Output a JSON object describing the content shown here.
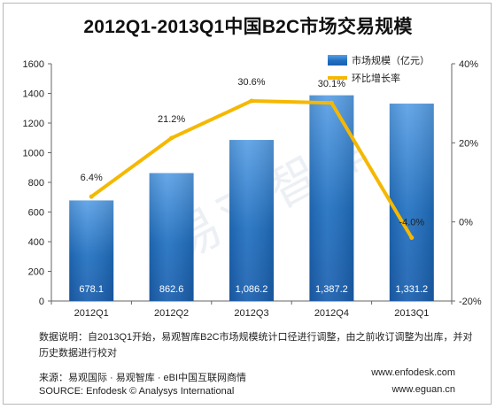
{
  "chart_data": {
    "type": "bar",
    "title": "2012Q1-2013Q1中国B2C市场交易规模",
    "categories": [
      "2012Q1",
      "2012Q2",
      "2012Q3",
      "2012Q4",
      "2013Q1"
    ],
    "series": [
      {
        "name": "市场规模（亿元）",
        "type": "bar",
        "axis": "left",
        "values": [
          678.1,
          862.6,
          1086.2,
          1387.2,
          1331.2
        ],
        "value_labels": [
          "678.1",
          "862.6",
          "1,086.2",
          "1,387.2",
          "1,331.2"
        ],
        "color": "#1f6fc0"
      },
      {
        "name": "环比增长率",
        "type": "line",
        "axis": "right",
        "values": [
          6.4,
          21.2,
          30.6,
          30.1,
          -4.0
        ],
        "value_labels": [
          "6.4%",
          "21.2%",
          "30.6%",
          "30.1%",
          "-4.0%"
        ],
        "color": "#f5b800"
      }
    ],
    "y_left": {
      "range": [
        0,
        1600
      ],
      "ticks": [
        "0",
        "200",
        "400",
        "600",
        "800",
        "1000",
        "1200",
        "1400",
        "1600"
      ]
    },
    "y_right": {
      "range": [
        -20,
        40
      ],
      "ticks": [
        "-20%",
        "0%",
        "20%",
        "40%"
      ]
    },
    "grid": false,
    "legend": "top-right"
  },
  "note": "数据说明：自2013Q1开始，易观智库B2C市场规模统计口径进行调整，由之前收订调整为出库，并对历史数据进行校对",
  "source_cn": "来源：易观国际 · 易观智库 · eBI中国互联网商情",
  "source_en": "SOURCE: Enfodesk © Analysys International",
  "website_1": "www.enfodesk.com",
  "website_2": "www.eguan.cn",
  "watermark": "易观智库"
}
